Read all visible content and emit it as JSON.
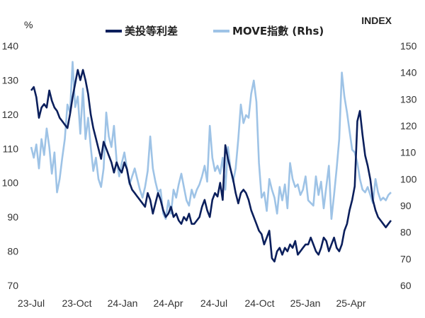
{
  "chart_data": {
    "type": "line",
    "left_axis_unit": "%",
    "right_axis_unit": "INDEX",
    "ylim_left": [
      70,
      140
    ],
    "ylim_right": [
      60,
      150
    ],
    "yticks_left": [
      70,
      80,
      90,
      100,
      110,
      120,
      130,
      140
    ],
    "yticks_right": [
      60,
      70,
      80,
      90,
      100,
      110,
      120,
      130,
      140,
      150
    ],
    "x_tick_labels": [
      "23-Jul",
      "23-Oct",
      "24-Jan",
      "24-Apr",
      "24-Jul",
      "24-Oct",
      "25-Jan",
      "25-Apr"
    ],
    "grid": false,
    "series": [
      {
        "name": "美投等利差",
        "axis": "left",
        "color": "#0b1f5c",
        "values": [
          127,
          128,
          125,
          119,
          122,
          123,
          122,
          127,
          124,
          122,
          121,
          119,
          118,
          117,
          116,
          120,
          125,
          129,
          133,
          130,
          133,
          130,
          126,
          120,
          116,
          113,
          110,
          107,
          112,
          110,
          108,
          106,
          103,
          106,
          104,
          103,
          106,
          104,
          100,
          98,
          97,
          96,
          95,
          94,
          93,
          97,
          95,
          91,
          94,
          97,
          95,
          92,
          90,
          91,
          93,
          90,
          91,
          89,
          88,
          90,
          89,
          91,
          88,
          88,
          89,
          90,
          93,
          95,
          92,
          90,
          95,
          97,
          96,
          100,
          95,
          111,
          107,
          104,
          101,
          97,
          94,
          97,
          98,
          97,
          95,
          92,
          90,
          88,
          86,
          85,
          82,
          84,
          86,
          78,
          77,
          80,
          81,
          79,
          81,
          80,
          82,
          81,
          83,
          79,
          80,
          81,
          82,
          82,
          84,
          82,
          80,
          79,
          81,
          84,
          83,
          80,
          82,
          84,
          81,
          80,
          82,
          86,
          88,
          92,
          95,
          99,
          118,
          121,
          114,
          108,
          105,
          101,
          95,
          92,
          90,
          89,
          88,
          87,
          88,
          89
        ]
      },
      {
        "name": "MOVE指數 (Rhs)",
        "axis": "right",
        "color": "#9ec3e6",
        "values": [
          112,
          108,
          113,
          104,
          115,
          109,
          119,
          112,
          102,
          110,
          95,
          100,
          108,
          115,
          128,
          125,
          144,
          127,
          131,
          117,
          134,
          115,
          123,
          112,
          103,
          108,
          100,
          97,
          104,
          125,
          116,
          112,
          120,
          107,
          101,
          106,
          110,
          104,
          98,
          101,
          104,
          100,
          96,
          93,
          97,
          103,
          116,
          104,
          99,
          95,
          96,
          87,
          85,
          92,
          87,
          96,
          93,
          98,
          102,
          97,
          92,
          90,
          96,
          93,
          96,
          98,
          101,
          105,
          99,
          120,
          108,
          103,
          105,
          102,
          108,
          96,
          112,
          104,
          99,
          104,
          115,
          128,
          121,
          124,
          123,
          132,
          137,
          129,
          106,
          93,
          95,
          88,
          100,
          96,
          93,
          87,
          97,
          92,
          98,
          89,
          106,
          100,
          97,
          98,
          94,
          96,
          101,
          92,
          91,
          90,
          101,
          94,
          99,
          89,
          97,
          105,
          85,
          94,
          104,
          115,
          140,
          131,
          125,
          118,
          111,
          110,
          106,
          100,
          96,
          95,
          97,
          94,
          91,
          100,
          95,
          92,
          93,
          92,
          94,
          95
        ]
      }
    ]
  }
}
